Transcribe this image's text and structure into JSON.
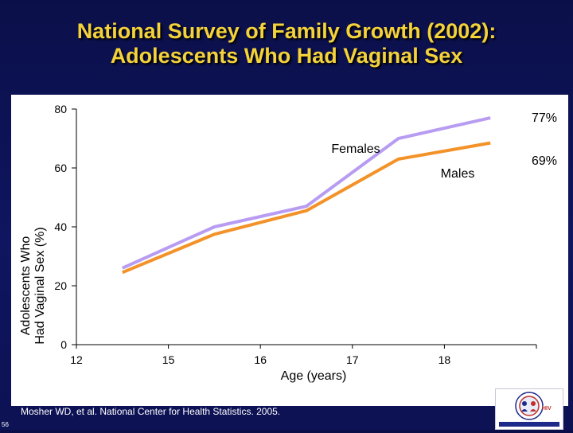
{
  "slide": {
    "title_line1": "National Survey of Family Growth (2002):",
    "title_line2": "Adolescents Who Had Vaginal Sex",
    "citation": "Mosher WD, et al. National Center for Health Statistics. 2005.",
    "slide_number": "56"
  },
  "logo": {
    "text": "HIV"
  },
  "colors": {
    "background": "#0f1560",
    "title": "#f3d23a",
    "females": "#b79cf2",
    "males": "#f39228"
  },
  "chart_data": {
    "type": "line",
    "title": "",
    "xlabel": "Age (years)",
    "ylabel_line1": "Adolescents Who",
    "ylabel_line2": "Had Vaginal Sex (%)",
    "x": [
      12,
      15,
      16,
      17,
      18
    ],
    "x_tick_labels": [
      "12",
      "15",
      "16",
      "17",
      "18"
    ],
    "y_ticks": [
      0,
      20,
      40,
      60,
      80
    ],
    "y_tick_labels": [
      "0",
      "20",
      "40",
      "60",
      "80"
    ],
    "ylim": [
      0,
      80
    ],
    "grid": false,
    "series": [
      {
        "name": "Females",
        "color": "#b79cf2",
        "values": [
          26,
          40,
          47,
          70,
          77
        ]
      },
      {
        "name": "Males",
        "color": "#f39228",
        "values": [
          24.5,
          37.5,
          45.5,
          63,
          68.5
        ]
      }
    ],
    "annotations": {
      "females_end": "77%",
      "males_end": "69%"
    }
  }
}
